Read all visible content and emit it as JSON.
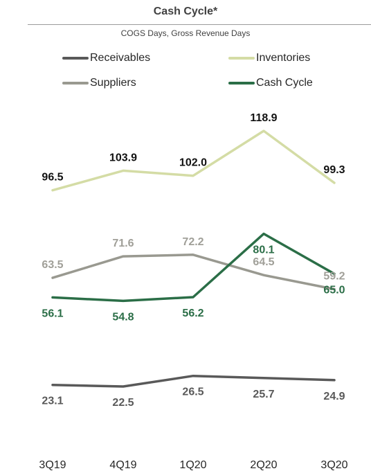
{
  "chart_data": {
    "type": "line",
    "title": "Cash Cycle*",
    "subtitle": "COGS Days, Gross Revenue Days",
    "categories": [
      "3Q19",
      "4Q19",
      "1Q20",
      "2Q20",
      "3Q20"
    ],
    "series": [
      {
        "name": "Receivables",
        "values": [
          23.1,
          22.5,
          26.5,
          25.7,
          24.9
        ],
        "color": "#595959",
        "label_color": "#595959",
        "label_side": "below"
      },
      {
        "name": "Inventories",
        "values": [
          96.5,
          103.9,
          102.0,
          118.9,
          99.3
        ],
        "color": "#d4dca5",
        "label_color": "#111111",
        "label_side": "above"
      },
      {
        "name": "Suppliers",
        "values": [
          63.5,
          71.6,
          72.2,
          64.5,
          59.2
        ],
        "color": "#999990",
        "label_color": "#a09f98",
        "label_side": "above"
      },
      {
        "name": "Cash Cycle",
        "values": [
          56.1,
          54.8,
          56.2,
          80.1,
          65.0
        ],
        "color": "#2b6e47",
        "label_color": "#2b6e47",
        "label_side": "below"
      }
    ],
    "legend_position": "top",
    "grid": false
  }
}
